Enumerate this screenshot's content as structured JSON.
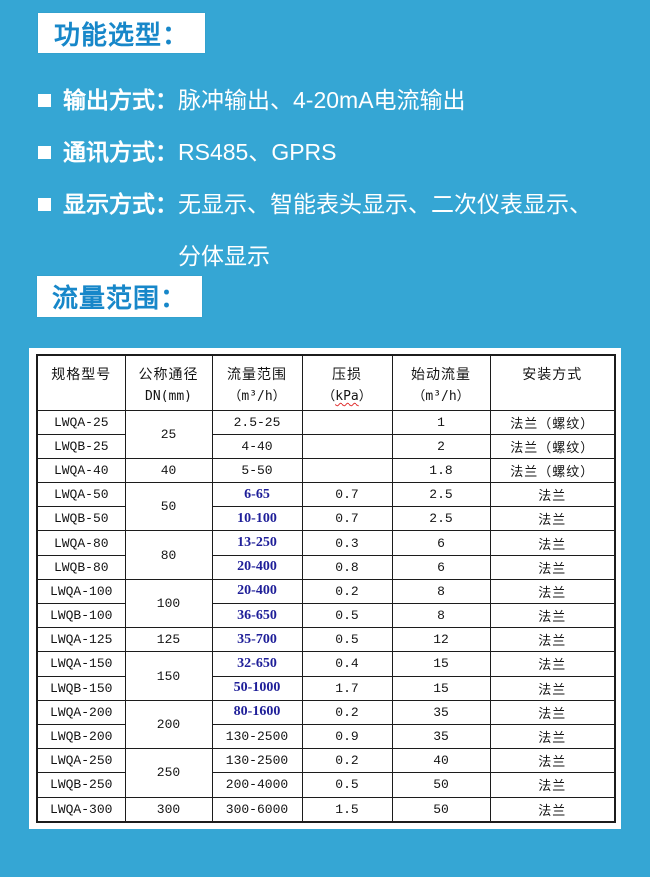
{
  "page": {
    "background_color": "#35a6d4",
    "accent_blue": "#1787c9",
    "navy_value_color": "#1f1f99"
  },
  "section_function": {
    "title": "功能选型：",
    "bullets": [
      {
        "label": "输出方式：",
        "lines": [
          "脉冲输出、4-20mA电流输出"
        ]
      },
      {
        "label": "通讯方式：",
        "lines": [
          "RS485、GPRS"
        ]
      },
      {
        "label": "显示方式：",
        "lines": [
          "无显示、智能表头显示、二次仪表显示、",
          "分体显示"
        ]
      }
    ]
  },
  "section_flow": {
    "title": "流量范围："
  },
  "table": {
    "headers": [
      {
        "title": "规格型号",
        "unit": ""
      },
      {
        "title": "公称通径",
        "unit": "DN(mm)"
      },
      {
        "title": "流量范围",
        "unit": "（m³/h）"
      },
      {
        "title": "压损",
        "unit_prefix": "（",
        "unit_wavy": "kPa",
        "unit_suffix": "）"
      },
      {
        "title": "始动流量",
        "unit": "（m³/h）"
      },
      {
        "title": "安装方式",
        "unit": ""
      }
    ],
    "rows": [
      {
        "model": "LWQA-25",
        "dn": "25",
        "dn_span": 2,
        "flow": "2.5-25",
        "navy": false,
        "pressure": "",
        "start": "1",
        "install": "法兰（螺纹）"
      },
      {
        "model": "LWQB-25",
        "flow": "4-40",
        "navy": false,
        "pressure": "",
        "start": "2",
        "install": "法兰（螺纹）"
      },
      {
        "model": "LWQA-40",
        "dn": "40",
        "dn_span": 1,
        "flow": "5-50",
        "navy": false,
        "pressure": "",
        "start": "1.8",
        "install": "法兰（螺纹）"
      },
      {
        "model": "LWQA-50",
        "dn": "50",
        "dn_span": 2,
        "flow": "6-65",
        "navy": true,
        "pressure": "0.7",
        "start": "2.5",
        "install": "法兰"
      },
      {
        "model": "LWQB-50",
        "flow": "10-100",
        "navy": true,
        "pressure": "0.7",
        "start": "2.5",
        "install": "法兰"
      },
      {
        "model": "LWQA-80",
        "dn": "80",
        "dn_span": 2,
        "flow": "13-250",
        "navy": true,
        "pressure": "0.3",
        "start": "6",
        "install": "法兰"
      },
      {
        "model": "LWQB-80",
        "flow": "20-400",
        "navy": true,
        "pressure": "0.8",
        "start": "6",
        "install": "法兰"
      },
      {
        "model": "LWQA-100",
        "dn": "100",
        "dn_span": 2,
        "flow": "20-400",
        "navy": true,
        "pressure": "0.2",
        "start": "8",
        "install": "法兰"
      },
      {
        "model": "LWQB-100",
        "flow": "36-650",
        "navy": true,
        "pressure": "0.5",
        "start": "8",
        "install": "法兰"
      },
      {
        "model": "LWQA-125",
        "dn": "125",
        "dn_span": 1,
        "flow": "35-700",
        "navy": true,
        "pressure": "0.5",
        "start": "12",
        "install": "法兰"
      },
      {
        "model": "LWQA-150",
        "dn": "150",
        "dn_span": 2,
        "flow": "32-650",
        "navy": true,
        "pressure": "0.4",
        "start": "15",
        "install": "法兰"
      },
      {
        "model": "LWQB-150",
        "flow": "50-1000",
        "navy": true,
        "pressure": "1.7",
        "start": "15",
        "install": "法兰"
      },
      {
        "model": "LWQA-200",
        "dn": "200",
        "dn_span": 2,
        "flow": "80-1600",
        "navy": true,
        "pressure": "0.2",
        "start": "35",
        "install": "法兰"
      },
      {
        "model": "LWQB-200",
        "flow": "130-2500",
        "navy": false,
        "pressure": "0.9",
        "start": "35",
        "install": "法兰"
      },
      {
        "model": "LWQA-250",
        "dn": "250",
        "dn_span": 2,
        "flow": "130-2500",
        "navy": false,
        "pressure": "0.2",
        "start": "40",
        "install": "法兰"
      },
      {
        "model": "LWQB-250",
        "flow": "200-4000",
        "navy": false,
        "pressure": "0.5",
        "start": "50",
        "install": "法兰"
      },
      {
        "model": "LWQA-300",
        "dn": "300",
        "dn_span": 1,
        "flow": "300-6000",
        "navy": false,
        "pressure": "1.5",
        "start": "50",
        "install": "法兰"
      }
    ]
  }
}
